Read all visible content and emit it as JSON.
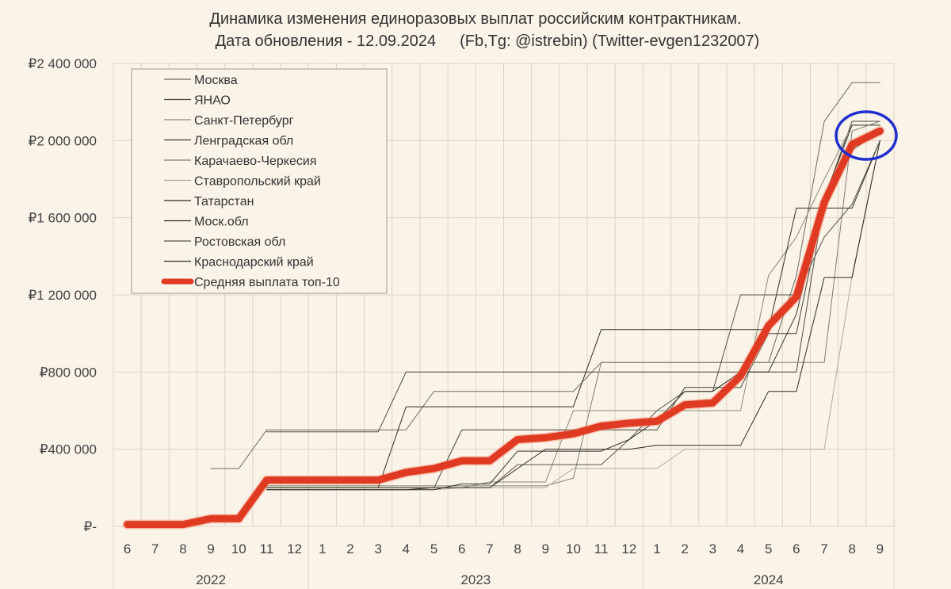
{
  "title": {
    "line1": "Динамика изменения единоразовых выплат российским контрактникам.",
    "line2_date": "Дата обновления - 12.09.2024",
    "line2_contacts": "(Fb,Tg: @istrebin) (Twitter-evgen1232007)"
  },
  "colors": {
    "background": "#faf3e8",
    "grid": "#dcd3c4",
    "average": "#e03a22",
    "highlight": "#1f2fcf"
  },
  "chart_data": {
    "type": "line",
    "title": "Динамика изменения единоразовых выплат российским контрактникам.",
    "xlabel": "",
    "ylabel": "",
    "ylim": [
      0,
      2400000
    ],
    "yticks": [
      0,
      400000,
      800000,
      1200000,
      1600000,
      2000000,
      2400000
    ],
    "ytick_labels": [
      "₽-",
      "₽400 000",
      "₽800 000",
      "₽1 200 000",
      "₽1 600 000",
      "₽2 000 000",
      "₽2 400 000"
    ],
    "x": [
      "6",
      "7",
      "8",
      "9",
      "10",
      "11",
      "12",
      "1",
      "2",
      "3",
      "4",
      "5",
      "6",
      "7",
      "8",
      "9",
      "10",
      "11",
      "12",
      "1",
      "2",
      "3",
      "4",
      "5",
      "6",
      "7",
      "8",
      "9"
    ],
    "years": [
      {
        "label": "2022",
        "months": 7
      },
      {
        "label": "2023",
        "months": 12
      },
      {
        "label": "2024",
        "months": 9
      }
    ],
    "grid": true,
    "legend_position": "top-left",
    "series": [
      {
        "name": "Москва",
        "color": "#6b6b60",
        "width": 1,
        "values": [
          null,
          null,
          null,
          300000,
          300000,
          500000,
          500000,
          500000,
          500000,
          500000,
          500000,
          700000,
          700000,
          700000,
          700000,
          700000,
          700000,
          850000,
          850000,
          850000,
          850000,
          850000,
          850000,
          850000,
          1300000,
          2100000,
          2300000,
          2300000
        ]
      },
      {
        "name": "ЯНАО",
        "color": "#4a4a40",
        "width": 1,
        "values": [
          null,
          null,
          null,
          null,
          null,
          490000,
          490000,
          490000,
          490000,
          490000,
          800000,
          800000,
          800000,
          800000,
          800000,
          800000,
          800000,
          800000,
          800000,
          800000,
          800000,
          800000,
          800000,
          800000,
          800000,
          1700000,
          2100000,
          2100000
        ]
      },
      {
        "name": "Санкт-Петербург",
        "color": "#8a8a78",
        "width": 1,
        "values": [
          null,
          null,
          null,
          null,
          null,
          200000,
          200000,
          200000,
          200000,
          200000,
          200000,
          200000,
          200000,
          230000,
          230000,
          230000,
          600000,
          600000,
          600000,
          600000,
          600000,
          600000,
          600000,
          1300000,
          1500000,
          1800000,
          2080000,
          2080000
        ]
      },
      {
        "name": "Ленградская обл",
        "color": "#3f3f36",
        "width": 1,
        "values": [
          null,
          null,
          null,
          null,
          null,
          200000,
          200000,
          200000,
          200000,
          200000,
          200000,
          200000,
          500000,
          500000,
          500000,
          500000,
          500000,
          500000,
          500000,
          500000,
          720000,
          720000,
          720000,
          1000000,
          1000000,
          1700000,
          2080000,
          2080000
        ]
      },
      {
        "name": "Карачаево-Черкесия",
        "color": "#7f7f70",
        "width": 1,
        "values": [
          null,
          null,
          null,
          null,
          null,
          210000,
          210000,
          210000,
          210000,
          210000,
          210000,
          210000,
          210000,
          210000,
          210000,
          210000,
          250000,
          850000,
          850000,
          850000,
          850000,
          850000,
          850000,
          850000,
          850000,
          850000,
          2050000,
          2100000
        ]
      },
      {
        "name": "Ставропольский край",
        "color": "#b3a890",
        "width": 1,
        "values": [
          null,
          null,
          null,
          null,
          null,
          190000,
          190000,
          190000,
          190000,
          190000,
          190000,
          190000,
          200000,
          200000,
          200000,
          200000,
          300000,
          300000,
          300000,
          300000,
          400000,
          400000,
          400000,
          400000,
          400000,
          400000,
          1300000,
          2000000
        ]
      },
      {
        "name": "Татарстан",
        "color": "#2e2e26",
        "width": 1,
        "values": [
          null,
          null,
          null,
          null,
          null,
          200000,
          200000,
          200000,
          200000,
          200000,
          620000,
          620000,
          620000,
          620000,
          620000,
          620000,
          620000,
          1020000,
          1020000,
          1020000,
          1020000,
          1020000,
          1020000,
          1020000,
          1650000,
          1650000,
          1650000,
          2000000
        ]
      },
      {
        "name": "Моск.обл",
        "color": "#2a2a22",
        "width": 1,
        "values": [
          null,
          null,
          null,
          null,
          null,
          190000,
          190000,
          190000,
          190000,
          190000,
          190000,
          200000,
          200000,
          200000,
          300000,
          400000,
          400000,
          400000,
          400000,
          420000,
          420000,
          420000,
          420000,
          700000,
          700000,
          1290000,
          1290000,
          2000000
        ]
      },
      {
        "name": "Ростовская обл",
        "color": "#55554a",
        "width": 1,
        "values": [
          null,
          null,
          null,
          null,
          null,
          200000,
          200000,
          200000,
          200000,
          200000,
          200000,
          200000,
          200000,
          200000,
          320000,
          320000,
          320000,
          320000,
          450000,
          600000,
          700000,
          700000,
          1200000,
          1200000,
          1200000,
          1500000,
          1670000,
          2000000
        ]
      },
      {
        "name": "Краснодарский край",
        "color": "#33332b",
        "width": 1,
        "values": [
          null,
          null,
          null,
          null,
          null,
          190000,
          190000,
          190000,
          190000,
          190000,
          190000,
          190000,
          220000,
          220000,
          390000,
          390000,
          390000,
          390000,
          450000,
          550000,
          700000,
          700000,
          800000,
          800000,
          1100000,
          1700000,
          1950000,
          2050000
        ]
      },
      {
        "name": "Средняя выплата топ-10",
        "color": "#e03a22",
        "width": 9,
        "values": [
          10000,
          10000,
          10000,
          40000,
          40000,
          240000,
          240000,
          240000,
          240000,
          240000,
          280000,
          300000,
          340000,
          340000,
          450000,
          460000,
          480000,
          520000,
          535000,
          545000,
          630000,
          640000,
          780000,
          1040000,
          1190000,
          1680000,
          1980000,
          2050000
        ]
      }
    ]
  }
}
